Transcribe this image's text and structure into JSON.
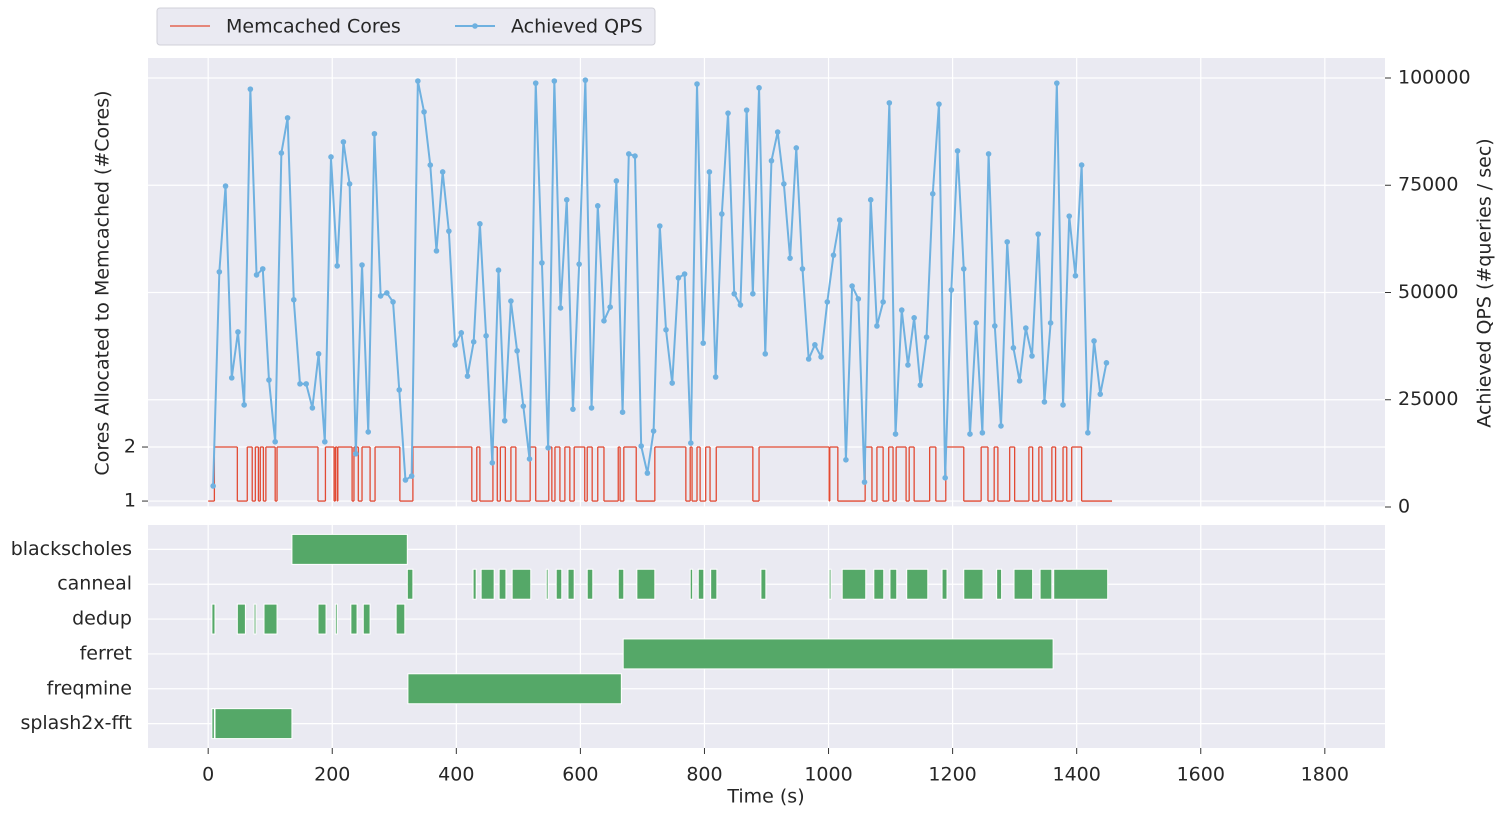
{
  "chart_data": [
    {
      "type": "line",
      "ylabel": "Cores Allocated to Memcached (#Cores)",
      "y2label": "Achieved QPS (#queries / sec)",
      "xlim": [
        -97,
        1897
      ],
      "xticks": [
        0,
        200,
        400,
        600,
        800,
        1000,
        1200,
        1400,
        1600,
        1800
      ],
      "ylim": [
        0.89,
        9.2
      ],
      "yticks": [
        1,
        2
      ],
      "y2lim": [
        0,
        104660
      ],
      "y2ticks": [
        0,
        25000,
        50000,
        75000,
        100000
      ],
      "grid": true,
      "legend": "top-left-outside",
      "series": [
        {
          "name": "Memcached Cores",
          "color": "#e24a33",
          "drawstyle": "steps-post",
          "axis": "y",
          "x": [
            0,
            10,
            47,
            63,
            71,
            76,
            81,
            84,
            89,
            93,
            108,
            111,
            177,
            189,
            203,
            205,
            208,
            209,
            232,
            235,
            242,
            248,
            261,
            269,
            309,
            330,
            425,
            433,
            438,
            459,
            466,
            471,
            479,
            488,
            496,
            519,
            528,
            549,
            554,
            559,
            567,
            575,
            583,
            590,
            607,
            611,
            619,
            628,
            638,
            661,
            664,
            670,
            690,
            720,
            770,
            777,
            780,
            788,
            793,
            802,
            809,
            819,
            878,
            888,
            1001,
            1002,
            1015,
            1059,
            1070,
            1078,
            1088,
            1097,
            1104,
            1109,
            1125,
            1130,
            1138,
            1163,
            1173,
            1189,
            1218,
            1246,
            1257,
            1267,
            1273,
            1292,
            1300,
            1323,
            1329,
            1339,
            1344,
            1360,
            1366,
            1378,
            1384,
            1392,
            1408,
            1457
          ],
          "values": [
            1,
            2,
            1,
            2,
            1,
            2,
            1,
            2,
            1,
            2,
            1,
            2,
            1,
            2,
            1,
            2,
            1,
            2,
            1,
            2,
            1,
            2,
            1,
            2,
            1,
            2,
            1,
            2,
            1,
            2,
            1,
            2,
            1,
            2,
            1,
            2,
            1,
            2,
            1,
            2,
            1,
            2,
            1,
            2,
            1,
            2,
            1,
            2,
            1,
            2,
            1,
            2,
            1,
            2,
            1,
            2,
            1,
            2,
            1,
            2,
            1,
            2,
            1,
            2,
            1,
            2,
            1,
            2,
            1,
            2,
            1,
            2,
            1,
            2,
            1,
            2,
            1,
            2,
            1,
            2,
            1,
            2,
            1,
            2,
            1,
            2,
            1,
            2,
            1,
            2,
            1,
            2,
            1,
            2,
            1,
            2,
            1,
            1
          ]
        },
        {
          "name": "Achieved QPS",
          "color": "#6fb1e0",
          "marker": "o",
          "axis": "y2",
          "x": [
            8,
            18,
            28,
            38,
            48,
            58,
            68,
            78,
            88,
            98,
            108,
            118,
            128,
            138,
            148,
            158,
            168,
            178,
            188,
            198,
            208,
            218,
            228,
            238,
            248,
            258,
            268,
            278,
            288,
            298,
            308,
            318,
            328,
            338,
            348,
            358,
            368,
            378,
            388,
            398,
            408,
            418,
            428,
            438,
            448,
            458,
            468,
            478,
            488,
            498,
            508,
            518,
            528,
            538,
            548,
            558,
            568,
            578,
            588,
            598,
            608,
            618,
            628,
            638,
            648,
            658,
            668,
            678,
            688,
            698,
            708,
            718,
            728,
            738,
            748,
            758,
            768,
            778,
            788,
            798,
            808,
            818,
            828,
            838,
            848,
            858,
            868,
            878,
            888,
            898,
            908,
            918,
            928,
            938,
            948,
            958,
            968,
            978,
            988,
            998,
            1008,
            1018,
            1028,
            1038,
            1048,
            1058,
            1068,
            1078,
            1088,
            1098,
            1108,
            1118,
            1128,
            1138,
            1148,
            1158,
            1168,
            1178,
            1188,
            1198,
            1208,
            1218,
            1228,
            1238,
            1248,
            1258,
            1268,
            1278,
            1288,
            1298,
            1308,
            1318,
            1328,
            1338,
            1348,
            1358,
            1368,
            1378,
            1388,
            1398,
            1408,
            1418,
            1428,
            1438,
            1448
          ],
          "values": [
            4900,
            54800,
            74800,
            30100,
            40800,
            23800,
            97400,
            54100,
            55500,
            29600,
            15200,
            82500,
            90700,
            48300,
            28700,
            28700,
            23100,
            35700,
            15200,
            81600,
            56200,
            85100,
            75300,
            12400,
            56400,
            17500,
            87000,
            49200,
            49900,
            47800,
            27300,
            6300,
            7200,
            99300,
            92100,
            79700,
            59700,
            78100,
            64300,
            37800,
            40600,
            30500,
            38500,
            66000,
            39900,
            10300,
            55200,
            20100,
            48000,
            36400,
            23500,
            11200,
            98800,
            56900,
            13800,
            99300,
            46400,
            71600,
            22800,
            56600,
            99500,
            23100,
            70200,
            43400,
            46600,
            76000,
            22100,
            82300,
            81800,
            14200,
            7900,
            17700,
            65500,
            41300,
            28900,
            53400,
            54300,
            14900,
            98600,
            38200,
            78100,
            30300,
            68300,
            91800,
            49700,
            47100,
            92500,
            49700,
            97700,
            35700,
            80700,
            87400,
            75300,
            58000,
            83700,
            55500,
            34500,
            37800,
            35000,
            47800,
            58700,
            66900,
            11000,
            51500,
            48500,
            5800,
            71600,
            42200,
            47800,
            94200,
            17000,
            45900,
            33100,
            44100,
            28400,
            39600,
            73000,
            93900,
            6800,
            50600,
            83000,
            55500,
            17000,
            42900,
            17300,
            82300,
            42200,
            18900,
            61800,
            37100,
            29400,
            41700,
            35200,
            63600,
            24500,
            42900,
            98800,
            23800,
            67800,
            53900,
            79700,
            17300,
            38700,
            26300,
            33600
          ]
        }
      ]
    },
    {
      "type": "broken_barh",
      "xlabel": "Time (s)",
      "xlim": [
        -97,
        1897
      ],
      "xticks": [
        0,
        200,
        400,
        600,
        800,
        1000,
        1200,
        1400,
        1600,
        1800
      ],
      "grid": true,
      "color": "#55a868",
      "categories": [
        "blackscholes",
        "canneal",
        "dedup",
        "ferret",
        "freqmine",
        "splash2x-fft"
      ],
      "intervals": [
        [
          [
            135,
            321
          ]
        ],
        [
          [
            321,
            330
          ],
          [
            427,
            432
          ],
          [
            440,
            461
          ],
          [
            469,
            480
          ],
          [
            490,
            520
          ],
          [
            545,
            548
          ],
          [
            561,
            570
          ],
          [
            580,
            590
          ],
          [
            611,
            620
          ],
          [
            661,
            670
          ],
          [
            691,
            720
          ],
          [
            777,
            781
          ],
          [
            790,
            799
          ],
          [
            810,
            820
          ],
          [
            891,
            899
          ],
          [
            1001,
            1004
          ],
          [
            1022,
            1060
          ],
          [
            1073,
            1089
          ],
          [
            1099,
            1110
          ],
          [
            1126,
            1160
          ],
          [
            1183,
            1191
          ],
          [
            1218,
            1249
          ],
          [
            1271,
            1279
          ],
          [
            1299,
            1329
          ],
          [
            1341,
            1360
          ],
          [
            1363,
            1450
          ]
        ],
        [
          [
            6,
            11
          ],
          [
            47,
            60
          ],
          [
            74,
            77
          ],
          [
            90,
            111
          ],
          [
            177,
            190
          ],
          [
            205,
            208
          ],
          [
            230,
            240
          ],
          [
            250,
            261
          ],
          [
            303,
            317
          ]
        ],
        [
          [
            669,
            1362
          ]
        ],
        [
          [
            322,
            666
          ]
        ],
        [
          [
            6,
            10
          ],
          [
            11,
            135
          ]
        ]
      ]
    }
  ]
}
